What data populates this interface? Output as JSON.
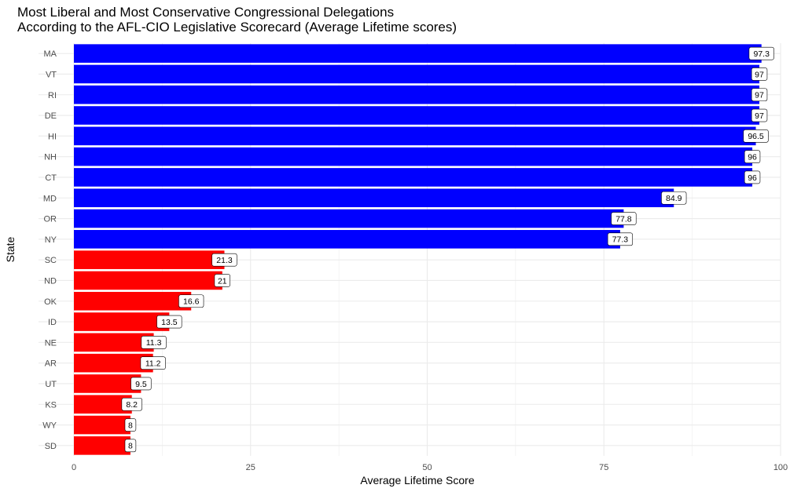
{
  "chart_data": {
    "type": "bar",
    "orientation": "horizontal",
    "title": "Most Liberal and Most Conservative Congressional Delegations",
    "subtitle": "According to the AFL-CIO Legislative Scorecard (Average Lifetime scores)",
    "xlabel": "Average Lifetime Score",
    "ylabel": "State",
    "xlim": [
      0,
      100
    ],
    "xticks": [
      0,
      25,
      50,
      75,
      100
    ],
    "grid": true,
    "legend": "none",
    "colors": {
      "liberal": "#0000ff",
      "conservative": "#ff0000",
      "grid": "#ebebeb"
    },
    "categories": [
      "MA",
      "VT",
      "RI",
      "DE",
      "HI",
      "NH",
      "CT",
      "MD",
      "OR",
      "NY",
      "SC",
      "ND",
      "OK",
      "ID",
      "NE",
      "AR",
      "UT",
      "KS",
      "WY",
      "SD"
    ],
    "values": [
      97.3,
      97,
      97,
      97,
      96.5,
      96,
      96,
      84.9,
      77.8,
      77.3,
      21.3,
      21,
      16.6,
      13.5,
      11.3,
      11.2,
      9.5,
      8.2,
      8,
      8
    ],
    "bar_groups": [
      "liberal",
      "liberal",
      "liberal",
      "liberal",
      "liberal",
      "liberal",
      "liberal",
      "liberal",
      "liberal",
      "liberal",
      "conservative",
      "conservative",
      "conservative",
      "conservative",
      "conservative",
      "conservative",
      "conservative",
      "conservative",
      "conservative",
      "conservative"
    ]
  }
}
